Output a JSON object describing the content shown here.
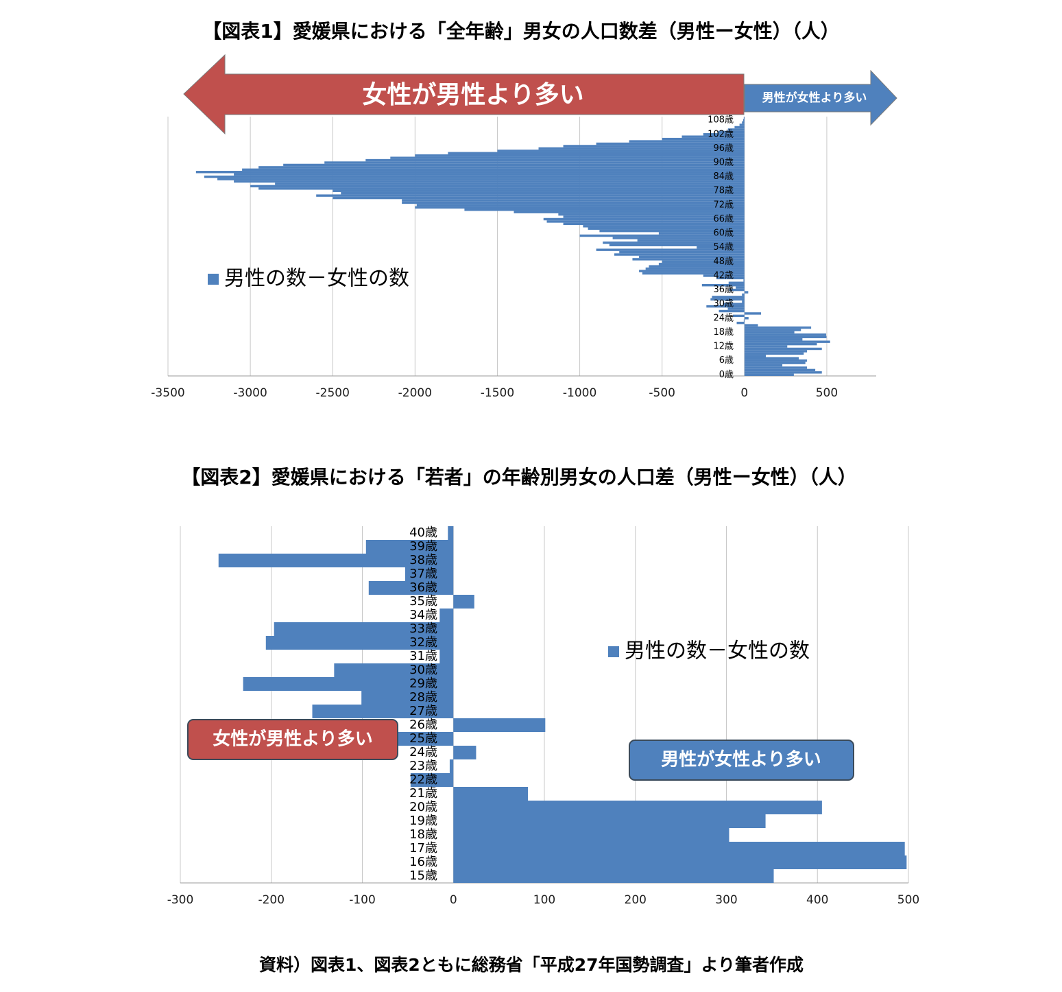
{
  "chart_data": [
    {
      "type": "bar",
      "orientation": "horizontal",
      "title": "【図表1】愛媛県における「全年齢」男女の人口数差（男性ー女性）（人）",
      "annotations": [
        "女性が男性より多い",
        "男性が女性より多い"
      ],
      "categories": [
        "0歳",
        null,
        null,
        null,
        null,
        null,
        "6歳",
        null,
        null,
        null,
        null,
        null,
        "12歳",
        null,
        null,
        null,
        null,
        null,
        "18歳",
        null,
        null,
        null,
        null,
        null,
        "24歳",
        null,
        null,
        null,
        null,
        null,
        "30歳",
        null,
        null,
        null,
        null,
        null,
        "36歳",
        null,
        null,
        null,
        null,
        null,
        "42歳",
        null,
        null,
        null,
        null,
        null,
        "48歳",
        null,
        null,
        null,
        null,
        null,
        "54歳",
        null,
        null,
        null,
        null,
        null,
        "60歳",
        null,
        null,
        null,
        null,
        null,
        "66歳",
        null,
        null,
        null,
        null,
        null,
        "72歳",
        null,
        null,
        null,
        null,
        null,
        "78歳",
        null,
        null,
        null,
        null,
        null,
        "84歳",
        null,
        null,
        null,
        null,
        null,
        "90歳",
        null,
        null,
        null,
        null,
        null,
        "96歳",
        null,
        null,
        null,
        null,
        null,
        "102歳",
        null,
        null,
        null,
        null,
        null,
        "108歳",
        null
      ],
      "series": [
        {
          "name": "男性の数－女性の数",
          "color": "#4f81bd",
          "values": [
            300,
            470,
            430,
            380,
            230,
            370,
            380,
            330,
            130,
            360,
            380,
            470,
            260,
            440,
            520,
            352,
            498,
            496,
            303,
            343,
            405,
            82,
            -47,
            -4,
            25,
            -70,
            101,
            -155,
            -101,
            -231,
            -131,
            -15,
            -206,
            -197,
            -15,
            23,
            -93,
            -53,
            -258,
            -96,
            -6,
            -170,
            -250,
            -620,
            -640,
            -600,
            -580,
            -520,
            -500,
            -680,
            -640,
            -790,
            -760,
            -900,
            -290,
            -820,
            -860,
            -650,
            -800,
            -1000,
            -520,
            -880,
            -950,
            -980,
            -1100,
            -1200,
            -1220,
            -1100,
            -1130,
            -1400,
            -1700,
            -2000,
            -1990,
            -2080,
            -2080,
            -2500,
            -2600,
            -2450,
            -2500,
            -2950,
            -3000,
            -2850,
            -3100,
            -3200,
            -3280,
            -3100,
            -3330,
            -3050,
            -2950,
            -2800,
            -2550,
            -2300,
            -2150,
            -2000,
            -1800,
            -1500,
            -1250,
            -1100,
            -900,
            -700,
            -500,
            -380,
            -250,
            -160,
            -100,
            -60,
            -30,
            -15,
            -8,
            -4
          ]
        }
      ],
      "xlim": [
        -3500,
        800
      ],
      "xticks": [
        -3500,
        -3000,
        -2500,
        -2000,
        -1500,
        -1000,
        -500,
        0,
        500
      ],
      "grid": true,
      "legend": "left"
    },
    {
      "type": "bar",
      "orientation": "horizontal",
      "title": "【図表2】愛媛県における「若者」の年齢別男女の人口差（男性ー女性）（人）",
      "annotations": [
        "女性が男性より多い",
        "男性が女性より多い"
      ],
      "categories": [
        "15歳",
        "16歳",
        "17歳",
        "18歳",
        "19歳",
        "20歳",
        "21歳",
        "22歳",
        "23歳",
        "24歳",
        "25歳",
        "26歳",
        "27歳",
        "28歳",
        "29歳",
        "30歳",
        "31歳",
        "32歳",
        "33歳",
        "34歳",
        "35歳",
        "36歳",
        "37歳",
        "38歳",
        "39歳",
        "40歳"
      ],
      "series": [
        {
          "name": "男性の数－女性の数",
          "color": "#4f81bd",
          "values": [
            352,
            498,
            496,
            303,
            343,
            405,
            82,
            -47,
            -4,
            25,
            -70,
            101,
            -155,
            -101,
            -231,
            -131,
            -15,
            -206,
            -197,
            -15,
            23,
            -93,
            -53,
            -258,
            -96,
            -6
          ]
        }
      ],
      "xlim": [
        -300,
        500
      ],
      "xticks": [
        -300,
        -200,
        -100,
        0,
        100,
        200,
        300,
        400,
        500
      ],
      "grid": true,
      "legend": "right"
    }
  ],
  "source": "資料）図表1、図表2ともに総務省「平成27年国勢調査」より筆者作成"
}
